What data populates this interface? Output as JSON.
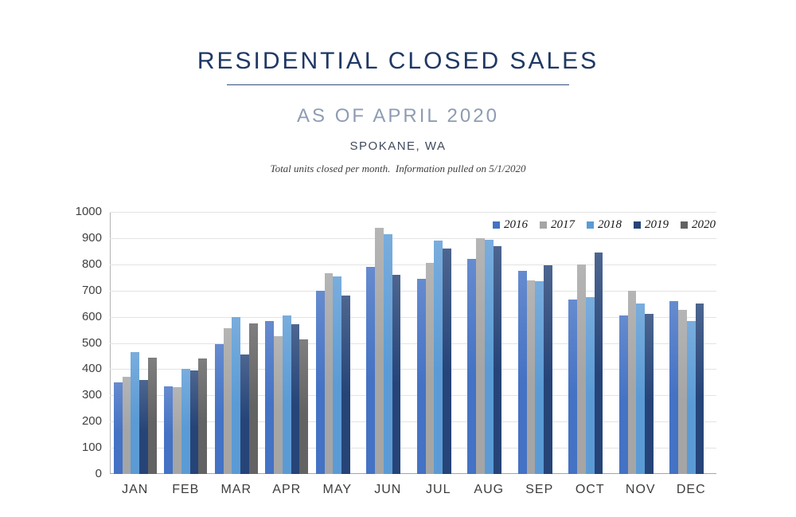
{
  "header": {
    "title": "RESIDENTIAL CLOSED SALES",
    "subtitle": "AS OF APRIL 2020",
    "location": "SPOKANE, WA",
    "note": "Total units closed per month.  Information pulled on 5/1/2020"
  },
  "colors": {
    "title_navy": "#1f3864",
    "subtitle_slate_blue": "#8e9cb3",
    "gridline": "#e3e3e3",
    "axis": "#a6a6a6"
  },
  "chart_data": {
    "type": "bar",
    "title": "Residential closed sales per month, Spokane WA, by year",
    "categories": [
      "JAN",
      "FEB",
      "MAR",
      "APR",
      "MAY",
      "JUN",
      "JUL",
      "AUG",
      "SEP",
      "OCT",
      "NOV",
      "DEC"
    ],
    "series": [
      {
        "name": "2016",
        "color": "#4472c4",
        "values": [
          350,
          335,
          495,
          585,
          700,
          790,
          745,
          820,
          775,
          665,
          605,
          660
        ]
      },
      {
        "name": "2017",
        "color": "#a5a5a5",
        "values": [
          370,
          330,
          555,
          525,
          765,
          940,
          805,
          900,
          740,
          800,
          700,
          625
        ]
      },
      {
        "name": "2018",
        "color": "#5b9bd5",
        "values": [
          465,
          400,
          600,
          605,
          755,
          915,
          890,
          895,
          735,
          675,
          650,
          585
        ]
      },
      {
        "name": "2019",
        "color": "#264478",
        "values": [
          360,
          395,
          455,
          570,
          680,
          760,
          860,
          870,
          795,
          845,
          610,
          650
        ]
      },
      {
        "name": "2020",
        "color": "#636363",
        "values": [
          445,
          440,
          575,
          515,
          null,
          null,
          null,
          null,
          null,
          null,
          null,
          null
        ]
      }
    ],
    "xlabel": "",
    "ylabel": "",
    "ylim": [
      0,
      1000
    ],
    "y_ticks": [
      0,
      100,
      200,
      300,
      400,
      500,
      600,
      700,
      800,
      900,
      1000
    ],
    "grid": true,
    "legend_position": "top-right"
  }
}
